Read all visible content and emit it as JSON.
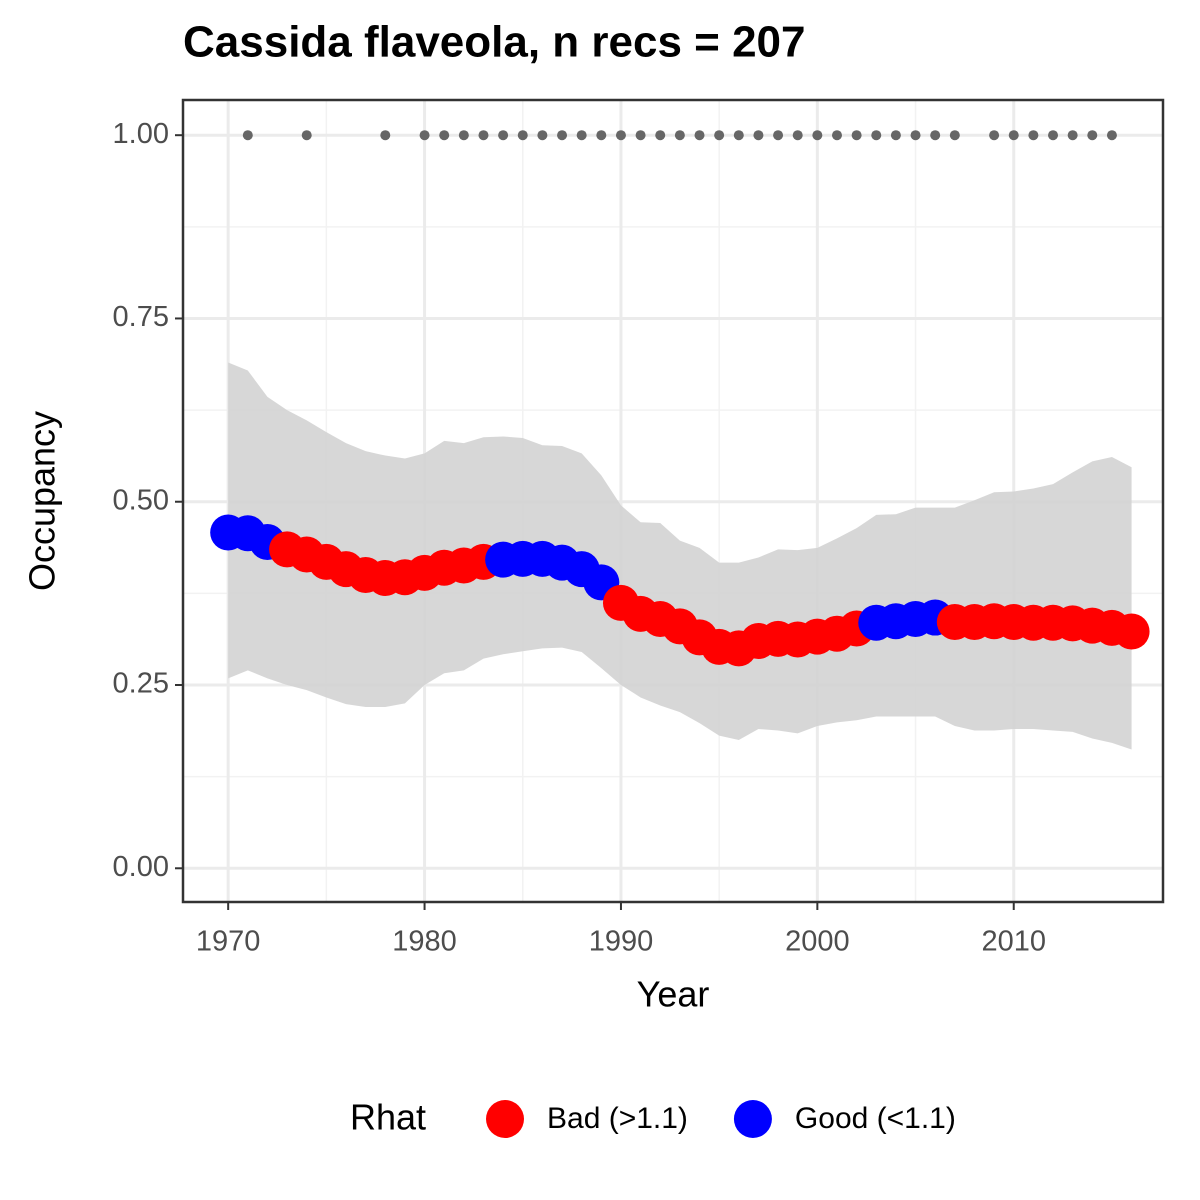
{
  "chart_data": {
    "type": "point",
    "title": "Cassida flaveola, n recs = 207",
    "x_label": "Year",
    "y_label": "Occupancy",
    "legend_title": "Rhat",
    "x": [
      1970,
      1971,
      1972,
      1973,
      1974,
      1975,
      1976,
      1977,
      1978,
      1979,
      1980,
      1981,
      1982,
      1983,
      1984,
      1985,
      1986,
      1987,
      1988,
      1989,
      1990,
      1991,
      1992,
      1993,
      1994,
      1995,
      1996,
      1997,
      1998,
      1999,
      2000,
      2001,
      2002,
      2003,
      2004,
      2005,
      2006,
      2007,
      2008,
      2009,
      2010,
      2011,
      2012,
      2013,
      2014,
      2015,
      2016
    ],
    "series": [
      {
        "name": "Bad (>1.1)",
        "color": "#ff0000",
        "values": [
          null,
          null,
          null,
          0.435,
          0.428,
          0.418,
          0.408,
          0.4,
          0.396,
          0.397,
          0.403,
          0.41,
          0.413,
          0.418,
          null,
          null,
          null,
          null,
          null,
          null,
          0.362,
          0.347,
          0.34,
          0.33,
          0.315,
          0.302,
          0.3,
          0.31,
          0.313,
          0.312,
          0.316,
          0.32,
          0.327,
          null,
          null,
          null,
          null,
          0.336,
          0.336,
          0.337,
          0.336,
          0.335,
          0.335,
          0.334,
          0.331,
          0.328,
          0.323
        ]
      },
      {
        "name": "Good (<1.1)",
        "color": "#0000ff",
        "values": [
          0.458,
          0.457,
          0.445,
          null,
          null,
          null,
          null,
          null,
          null,
          null,
          null,
          null,
          null,
          null,
          0.421,
          0.422,
          0.422,
          0.417,
          0.408,
          0.39,
          null,
          null,
          null,
          null,
          null,
          null,
          null,
          null,
          null,
          null,
          null,
          null,
          null,
          0.335,
          0.337,
          0.34,
          0.342,
          null,
          null,
          null,
          null,
          null,
          null,
          null,
          null,
          null,
          null
        ]
      }
    ],
    "ribbon": {
      "color": "#d3d3d3",
      "upper": [
        0.69,
        0.679,
        0.643,
        0.625,
        0.611,
        0.595,
        0.58,
        0.569,
        0.563,
        0.559,
        0.566,
        0.583,
        0.58,
        0.588,
        0.589,
        0.587,
        0.577,
        0.576,
        0.566,
        0.536,
        0.495,
        0.472,
        0.471,
        0.447,
        0.437,
        0.417,
        0.417,
        0.424,
        0.435,
        0.434,
        0.437,
        0.45,
        0.464,
        0.482,
        0.483,
        0.492,
        0.492,
        0.492,
        0.502,
        0.513,
        0.514,
        0.518,
        0.524,
        0.54,
        0.555,
        0.561,
        0.547
      ],
      "lower": [
        0.259,
        0.27,
        0.259,
        0.25,
        0.243,
        0.233,
        0.224,
        0.22,
        0.22,
        0.225,
        0.25,
        0.266,
        0.27,
        0.286,
        0.292,
        0.296,
        0.3,
        0.301,
        0.295,
        0.273,
        0.25,
        0.233,
        0.222,
        0.213,
        0.198,
        0.181,
        0.175,
        0.19,
        0.188,
        0.184,
        0.194,
        0.199,
        0.202,
        0.207,
        0.207,
        0.207,
        0.207,
        0.194,
        0.188,
        0.188,
        0.19,
        0.19,
        0.188,
        0.186,
        0.177,
        0.171,
        0.162
      ]
    },
    "records": {
      "color": "#666666",
      "x": [
        1971,
        1974,
        1978,
        1980,
        1981,
        1982,
        1983,
        1984,
        1985,
        1986,
        1987,
        1988,
        1989,
        1990,
        1991,
        1992,
        1993,
        1994,
        1995,
        1996,
        1997,
        1998,
        1999,
        2000,
        2001,
        2002,
        2003,
        2004,
        2005,
        2006,
        2007,
        2009,
        2010,
        2011,
        2012,
        2013,
        2014,
        2015
      ],
      "values": [
        1,
        1,
        1,
        1,
        1,
        1,
        1,
        1,
        1,
        1,
        1,
        1,
        1,
        1,
        1,
        1,
        1,
        1,
        1,
        1,
        1,
        1,
        1,
        1,
        1,
        1,
        1,
        1,
        1,
        1,
        1,
        1,
        1,
        1,
        1,
        1,
        1,
        1
      ]
    },
    "xlim": [
      1967.7,
      2017.6
    ],
    "ylim": [
      -0.046,
      1.048
    ],
    "xticks": [
      1970,
      1980,
      1990,
      2000,
      2010
    ],
    "yticks": [
      {
        "value": 0,
        "label": "0.00"
      },
      {
        "value": 0.25,
        "label": "0.25"
      },
      {
        "value": 0.5,
        "label": "0.50"
      },
      {
        "value": 0.75,
        "label": "0.75"
      },
      {
        "value": 1,
        "label": "1.00"
      }
    ],
    "grid": true,
    "legend_position": "bottom"
  }
}
